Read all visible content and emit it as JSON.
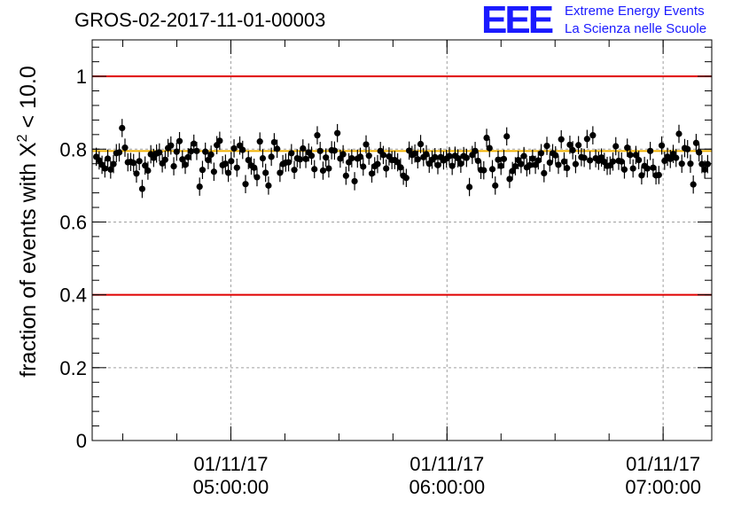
{
  "chart_data": {
    "type": "scatter",
    "title": "GROS-02-2017-11-01-00003",
    "ylabel_main": "fraction of events with X",
    "ylabel_sup": "2",
    "ylabel_tail": " < 10.0",
    "ylim": [
      0,
      1.1
    ],
    "yticks": [
      0,
      0.2,
      0.4,
      0.6,
      0.8,
      1
    ],
    "ytick_labels": [
      "0",
      "0.2",
      "0.4",
      "0.6",
      "0.8",
      "1"
    ],
    "xlim": [
      "01/11/17 04:21:30",
      "01/11/17 07:13:30"
    ],
    "xticks": [
      {
        "date": "01/11/17",
        "time": "05:00:00"
      },
      {
        "date": "01/11/17",
        "time": "06:00:00"
      },
      {
        "date": "01/11/17",
        "time": "07:00:00"
      }
    ],
    "grid": true,
    "reference_lines": [
      {
        "y": 1.0,
        "color": "#e00000"
      },
      {
        "y": 0.4,
        "color": "#e00000"
      },
      {
        "y": 0.795,
        "color": "#f0b000"
      }
    ],
    "marker_color": "#000000",
    "error": 0.025,
    "series": [
      {
        "values": [
          0.779,
          0.769,
          0.757,
          0.747,
          0.774,
          0.744,
          0.759,
          0.789,
          0.791,
          0.858,
          0.804,
          0.764,
          0.765,
          0.762,
          0.733,
          0.767,
          0.691,
          0.755,
          0.741,
          0.786,
          0.776,
          0.788,
          0.791,
          0.761,
          0.771,
          0.803,
          0.81,
          0.753,
          0.793,
          0.822,
          0.772,
          0.757,
          0.778,
          0.794,
          0.815,
          0.795,
          0.697,
          0.743,
          0.793,
          0.77,
          0.785,
          0.738,
          0.811,
          0.823,
          0.756,
          0.76,
          0.735,
          0.767,
          0.802,
          0.749,
          0.81,
          0.798,
          0.704,
          0.77,
          0.755,
          0.749,
          0.723,
          0.821,
          0.775,
          0.735,
          0.7,
          0.779,
          0.819,
          0.801,
          0.735,
          0.759,
          0.763,
          0.764,
          0.789,
          0.743,
          0.775,
          0.772,
          0.802,
          0.773,
          0.791,
          0.782,
          0.745,
          0.838,
          0.795,
          0.741,
          0.777,
          0.747,
          0.797,
          0.796,
          0.844,
          0.774,
          0.786,
          0.727,
          0.764,
          0.775,
          0.712,
          0.774,
          0.779,
          0.752,
          0.813,
          0.782,
          0.733,
          0.753,
          0.759,
          0.795,
          0.784,
          0.747,
          0.78,
          0.77,
          0.77,
          0.764,
          0.75,
          0.727,
          0.721,
          0.796,
          0.784,
          0.788,
          0.772,
          0.814,
          0.778,
          0.786,
          0.76,
          0.771,
          0.778,
          0.756,
          0.778,
          0.769,
          0.774,
          0.781,
          0.754,
          0.782,
          0.775,
          0.76,
          0.781,
          0.776,
          0.696,
          0.784,
          0.795,
          0.768,
          0.743,
          0.742,
          0.831,
          0.803,
          0.745,
          0.7,
          0.771,
          0.754,
          0.773,
          0.835,
          0.718,
          0.74,
          0.753,
          0.77,
          0.759,
          0.781,
          0.75,
          0.756,
          0.774,
          0.757,
          0.769,
          0.789,
          0.734,
          0.809,
          0.763,
          0.789,
          0.783,
          0.757,
          0.827,
          0.766,
          0.748,
          0.812,
          0.797,
          0.759,
          0.811,
          0.778,
          0.776,
          0.828,
          0.769,
          0.838,
          0.775,
          0.768,
          0.777,
          0.765,
          0.754,
          0.755,
          0.766,
          0.808,
          0.768,
          0.766,
          0.744,
          0.804,
          0.784,
          0.747,
          0.784,
          0.77,
          0.728,
          0.754,
          0.747,
          0.795,
          0.749,
          0.728,
          0.729,
          0.81,
          0.768,
          0.779,
          0.773,
          0.787,
          0.776,
          0.842,
          0.76,
          0.803,
          0.8,
          0.76,
          0.703,
          0.817,
          0.791,
          0.759,
          0.744,
          0.759
        ]
      }
    ]
  },
  "logo": {
    "mark": "EEE",
    "line1": "Extreme Energy Events",
    "line2": "La Scienza nelle Scuole"
  }
}
